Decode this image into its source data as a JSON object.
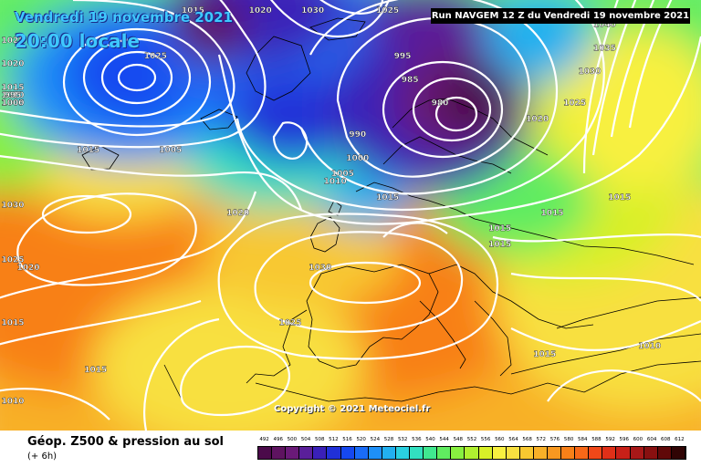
{
  "map": {
    "title_date": "Vendredi 19 novembre 2021",
    "title_time": "20:00 locale",
    "run_label": "Run NAVGEM 12 Z du Vendredi 19 novembre 2021",
    "copyright": "Copyright © 2021 Meteociel.fr",
    "isobar_labels": [
      {
        "text": "1030",
        "lon": -7,
        "lat": 83
      },
      {
        "text": "1025",
        "lon": 3,
        "lat": 81
      },
      {
        "text": "1020",
        "lon": -14,
        "lat": 80
      },
      {
        "text": "1015",
        "lon": -23,
        "lat": 79
      },
      {
        "text": "1025",
        "lon": -74,
        "lat": 72
      },
      {
        "text": "1020",
        "lon": -72,
        "lat": 69
      },
      {
        "text": "1015",
        "lon": -69,
        "lat": 66
      },
      {
        "text": "1010",
        "lon": -65,
        "lat": 65
      },
      {
        "text": "1005",
        "lon": -61,
        "lat": 64
      },
      {
        "text": "1000",
        "lon": -56,
        "lat": 64
      },
      {
        "text": "995",
        "lon": -50,
        "lat": 65
      },
      {
        "text": "1025",
        "lon": -28,
        "lat": 70
      },
      {
        "text": "1015",
        "lon": -37,
        "lat": 58
      },
      {
        "text": "1005",
        "lon": -26,
        "lat": 58
      },
      {
        "text": "995",
        "lon": 5,
        "lat": 70
      },
      {
        "text": "985",
        "lon": 6,
        "lat": 67
      },
      {
        "text": "980",
        "lon": 10,
        "lat": 64
      },
      {
        "text": "990",
        "lon": -1,
        "lat": 60
      },
      {
        "text": "1000",
        "lon": -1,
        "lat": 57
      },
      {
        "text": "1005",
        "lon": -3,
        "lat": 55
      },
      {
        "text": "1010",
        "lon": -4,
        "lat": 54
      },
      {
        "text": "1015",
        "lon": 3,
        "lat": 52
      },
      {
        "text": "1020",
        "lon": -17,
        "lat": 50
      },
      {
        "text": "1030",
        "lon": -6,
        "lat": 43
      },
      {
        "text": "1025",
        "lon": -10,
        "lat": 36
      },
      {
        "text": "1030",
        "lon": -57,
        "lat": 51
      },
      {
        "text": "1025",
        "lon": -58,
        "lat": 44
      },
      {
        "text": "1020",
        "lon": -45,
        "lat": 43
      },
      {
        "text": "1015",
        "lon": -65,
        "lat": 36
      },
      {
        "text": "1015",
        "lon": -36,
        "lat": 30
      },
      {
        "text": "1010",
        "lon": -64,
        "lat": 26
      },
      {
        "text": "1040",
        "lon": 32,
        "lat": 74
      },
      {
        "text": "1035",
        "lon": 32,
        "lat": 71
      },
      {
        "text": "1030",
        "lon": 30,
        "lat": 68
      },
      {
        "text": "1025",
        "lon": 28,
        "lat": 64
      },
      {
        "text": "1020",
        "lon": 23,
        "lat": 62
      },
      {
        "text": "1015",
        "lon": 18,
        "lat": 48
      },
      {
        "text": "1015",
        "lon": 25,
        "lat": 50
      },
      {
        "text": "1015",
        "lon": 34,
        "lat": 52
      },
      {
        "text": "1015",
        "lon": 18,
        "lat": 46
      },
      {
        "text": "1015",
        "lon": 24,
        "lat": 32
      },
      {
        "text": "1010",
        "lon": 38,
        "lat": 33
      }
    ],
    "pressure_centres": [
      {
        "hpa": 980,
        "lon": 10,
        "lat": 64,
        "type": "low"
      },
      {
        "hpa": 995,
        "lon": -50,
        "lat": 65,
        "type": "low"
      },
      {
        "hpa": 1005,
        "lon": -26,
        "lat": 58,
        "type": "low"
      },
      {
        "hpa": 1030,
        "lon": -6,
        "lat": 43,
        "type": "high"
      },
      {
        "hpa": 1030,
        "lon": -57,
        "lat": 51,
        "type": "high"
      },
      {
        "hpa": 1040,
        "lon": 32,
        "lat": 74,
        "type": "high"
      }
    ]
  },
  "footer": {
    "title": "Géop. Z500 & pression au sol",
    "subtitle": "(+ 6h)"
  },
  "legend": {
    "labels": [
      "492",
      "496",
      "500",
      "504",
      "508",
      "512",
      "516",
      "520",
      "524",
      "528",
      "532",
      "536",
      "540",
      "544",
      "548",
      "552",
      "556",
      "560",
      "564",
      "568",
      "572",
      "576",
      "580",
      "584",
      "588",
      "592",
      "596",
      "600",
      "604",
      "608",
      "612"
    ],
    "colors": [
      "#4b0a4a",
      "#5e1360",
      "#6a1a78",
      "#5a1f9a",
      "#3a20b8",
      "#2030d8",
      "#1648f0",
      "#1a6cf8",
      "#1e90f8",
      "#22b0f0",
      "#2ad0e0",
      "#32e0c0",
      "#40e890",
      "#60ec60",
      "#88f040",
      "#b0f030",
      "#d8f028",
      "#f8f040",
      "#f8e040",
      "#f8c830",
      "#f8b028",
      "#f89820",
      "#f88018",
      "#f86818",
      "#f04818",
      "#e03018",
      "#c82018",
      "#a81818",
      "#881010",
      "#600808",
      "#300404"
    ]
  }
}
